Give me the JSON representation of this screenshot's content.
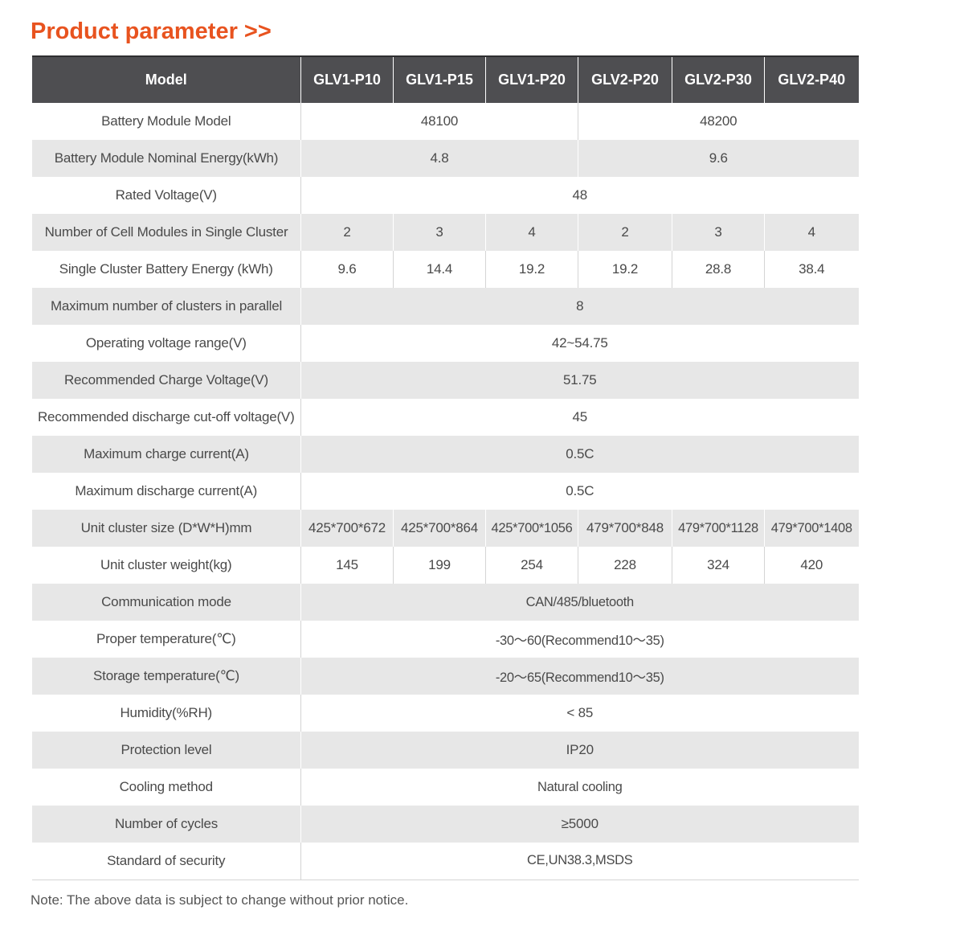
{
  "page": {
    "title": "Product parameter >>",
    "note": "Note: The above data is subject to change without prior notice."
  },
  "colors": {
    "title": "#e8531f",
    "header_bg": "#4e4e51",
    "row_shade": "#e7e7e7",
    "text": "#4a4a4a"
  },
  "table": {
    "header": {
      "label": "Model",
      "models": [
        "GLV1-P10",
        "GLV1-P15",
        "GLV1-P20",
        "GLV2-P20",
        "GLV2-P30",
        "GLV2-P40"
      ]
    },
    "rows": [
      {
        "label": "Battery Module Model",
        "cells": [
          {
            "text": "48100",
            "span": 3
          },
          {
            "text": "48200",
            "span": 3
          }
        ]
      },
      {
        "label": "Battery Module Nominal Energy(kWh)",
        "cells": [
          {
            "text": "4.8",
            "span": 3
          },
          {
            "text": "9.6",
            "span": 3
          }
        ]
      },
      {
        "label": "Rated Voltage(V)",
        "cells": [
          {
            "text": "48",
            "span": 6
          }
        ]
      },
      {
        "label": "Number of Cell Modules in Single Cluster",
        "cells": [
          {
            "text": "2",
            "span": 1
          },
          {
            "text": "3",
            "span": 1
          },
          {
            "text": "4",
            "span": 1
          },
          {
            "text": "2",
            "span": 1
          },
          {
            "text": "3",
            "span": 1
          },
          {
            "text": "4",
            "span": 1
          }
        ]
      },
      {
        "label": "Single Cluster Battery Energy (kWh)",
        "cells": [
          {
            "text": "9.6",
            "span": 1
          },
          {
            "text": "14.4",
            "span": 1
          },
          {
            "text": "19.2",
            "span": 1
          },
          {
            "text": "19.2",
            "span": 1
          },
          {
            "text": "28.8",
            "span": 1
          },
          {
            "text": "38.4",
            "span": 1
          }
        ]
      },
      {
        "label": "Maximum number of clusters in parallel",
        "cells": [
          {
            "text": "8",
            "span": 6
          }
        ]
      },
      {
        "label": "Operating voltage range(V)",
        "cells": [
          {
            "text": "42~54.75",
            "span": 6
          }
        ]
      },
      {
        "label": "Recommended Charge Voltage(V)",
        "cells": [
          {
            "text": "51.75",
            "span": 6
          }
        ]
      },
      {
        "label": "Recommended discharge cut-off voltage(V)",
        "cells": [
          {
            "text": "45",
            "span": 6
          }
        ]
      },
      {
        "label": "Maximum charge current(A)",
        "cells": [
          {
            "text": "0.5C",
            "span": 6
          }
        ]
      },
      {
        "label": "Maximum discharge current(A)",
        "cells": [
          {
            "text": "0.5C",
            "span": 6
          }
        ]
      },
      {
        "label": "Unit cluster size (D*W*H)mm",
        "cells": [
          {
            "text": "425*700*672",
            "span": 1
          },
          {
            "text": "425*700*864",
            "span": 1
          },
          {
            "text": "425*700*1056",
            "span": 1
          },
          {
            "text": "479*700*848",
            "span": 1
          },
          {
            "text": "479*700*1128",
            "span": 1
          },
          {
            "text": "479*700*1408",
            "span": 1
          }
        ]
      },
      {
        "label": "Unit cluster weight(kg)",
        "cells": [
          {
            "text": "145",
            "span": 1
          },
          {
            "text": "199",
            "span": 1
          },
          {
            "text": "254",
            "span": 1
          },
          {
            "text": "228",
            "span": 1
          },
          {
            "text": "324",
            "span": 1
          },
          {
            "text": "420",
            "span": 1
          }
        ]
      },
      {
        "label": "Communication mode",
        "cells": [
          {
            "text": "CAN/485/bluetooth",
            "span": 6
          }
        ]
      },
      {
        "label": "Proper temperature(℃)",
        "cells": [
          {
            "text": "-30～60(Recommend10～35)",
            "span": 6
          }
        ]
      },
      {
        "label": "Storage temperature(℃)",
        "cells": [
          {
            "text": "-20～65(Recommend10～35)",
            "span": 6
          }
        ]
      },
      {
        "label": "Humidity(%RH)",
        "cells": [
          {
            "text": "< 85",
            "span": 6
          }
        ]
      },
      {
        "label": "Protection level",
        "cells": [
          {
            "text": "IP20",
            "span": 6
          }
        ]
      },
      {
        "label": "Cooling method",
        "cells": [
          {
            "text": "Natural cooling",
            "span": 6
          }
        ]
      },
      {
        "label": "Number of cycles",
        "cells": [
          {
            "text": "≥5000",
            "span": 6
          }
        ]
      },
      {
        "label": "Standard of security",
        "cells": [
          {
            "text": "CE,UN38.3,MSDS",
            "span": 6
          }
        ]
      }
    ]
  }
}
